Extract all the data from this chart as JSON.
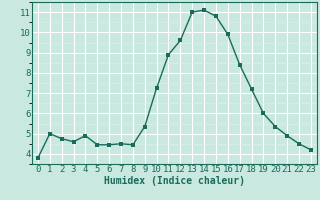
{
  "x": [
    0,
    1,
    2,
    3,
    4,
    5,
    6,
    7,
    8,
    9,
    10,
    11,
    12,
    13,
    14,
    15,
    16,
    17,
    18,
    19,
    20,
    21,
    22,
    23
  ],
  "y": [
    3.8,
    5.0,
    4.75,
    4.6,
    4.9,
    4.45,
    4.45,
    4.5,
    4.45,
    5.35,
    7.25,
    8.9,
    9.6,
    11.0,
    11.1,
    10.8,
    9.9,
    8.4,
    7.2,
    6.0,
    5.35,
    4.9,
    4.5,
    4.2
  ],
  "line_color": "#1a6b5a",
  "marker_color": "#1a6b5a",
  "bg_color": "#c8e8e0",
  "grid_color_major": "#ffffff",
  "grid_color_minor": "#ddf0eb",
  "xlabel": "Humidex (Indice chaleur)",
  "xlim": [
    -0.5,
    23.5
  ],
  "ylim": [
    3.5,
    11.5
  ],
  "yticks": [
    4,
    5,
    6,
    7,
    8,
    9,
    10,
    11
  ],
  "xticks": [
    0,
    1,
    2,
    3,
    4,
    5,
    6,
    7,
    8,
    9,
    10,
    11,
    12,
    13,
    14,
    15,
    16,
    17,
    18,
    19,
    20,
    21,
    22,
    23
  ],
  "xlabel_fontsize": 7,
  "tick_fontsize": 6.5,
  "line_width": 1.0,
  "marker_size": 2.5
}
